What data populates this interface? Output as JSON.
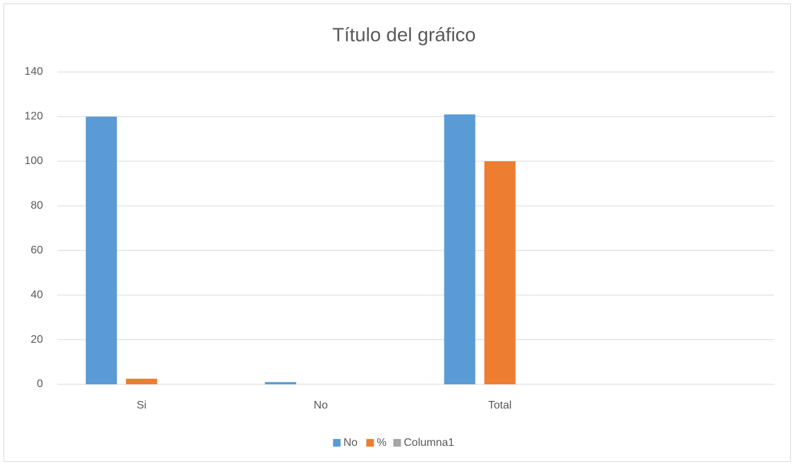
{
  "chart_data": {
    "type": "bar",
    "title": "Título del gráfico",
    "categories": [
      "Si",
      "No",
      "Total",
      null
    ],
    "series": [
      {
        "name": "No",
        "color": "#5b9bd5",
        "values": [
          120,
          1,
          121,
          null
        ]
      },
      {
        "name": "%",
        "color": "#ed7d31",
        "values": [
          2.5,
          null,
          100,
          null
        ]
      },
      {
        "name": "Columna1",
        "color": "#a5a5a5",
        "values": [
          null,
          null,
          null,
          null
        ]
      }
    ],
    "ylim": [
      0,
      140
    ],
    "yticks": [
      0,
      20,
      40,
      60,
      80,
      100,
      120,
      140
    ],
    "grid": true,
    "legend": "bottom"
  }
}
